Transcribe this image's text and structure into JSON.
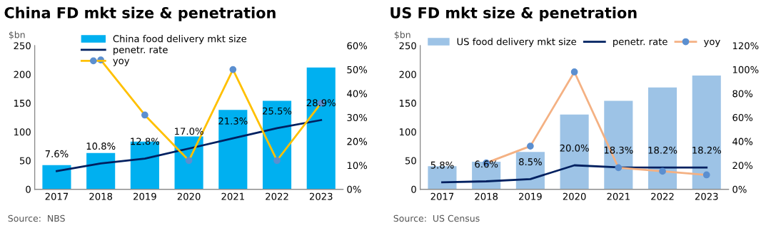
{
  "chart_data": [
    {
      "type": "bar",
      "title": "China FD mkt size & penetration",
      "ylabel": "$bn",
      "annotations": [
        "Source:  NBS"
      ],
      "categories": [
        "2017",
        "2018",
        "2019",
        "2020",
        "2021",
        "2022",
        "2023"
      ],
      "series": [
        {
          "name": "China food delivery mkt size",
          "color": "#00b0f0",
          "values": [
            42,
            63,
            83,
            92,
            138,
            154,
            212
          ]
        },
        {
          "name": "penetr. rate",
          "type": "line",
          "axis": "y2",
          "color": "#002060",
          "values": [
            7.6,
            10.8,
            12.8,
            17.0,
            21.3,
            25.5,
            28.9
          ],
          "value_labels": [
            "7.6%",
            "10.8%",
            "12.8%",
            "17.0%",
            "21.3%",
            "25.5%",
            "28.9%"
          ]
        },
        {
          "name": "yoy",
          "type": "line",
          "axis": "y2",
          "color": "#ffc000",
          "marker": "circle",
          "values": [
            null,
            54,
            31,
            12,
            50,
            12,
            36
          ]
        }
      ],
      "ylim": [
        0,
        250
      ],
      "yticks": [
        0,
        50,
        100,
        150,
        200,
        250
      ],
      "y2lim": [
        0,
        60
      ],
      "y2ticks": [
        {
          "value": 0,
          "label": "0%"
        },
        {
          "value": 10,
          "label": "10%"
        },
        {
          "value": 20,
          "label": "20%"
        },
        {
          "value": 30,
          "label": "30%"
        },
        {
          "value": 40,
          "label": "40%"
        },
        {
          "value": 50,
          "label": "50%"
        },
        {
          "value": 60,
          "label": "60%"
        }
      ],
      "legend": "top",
      "grid": false
    },
    {
      "type": "bar",
      "title": "US FD mkt size & penetration",
      "ylabel": "$bn",
      "annotations": [
        "Source:  US Census"
      ],
      "categories": [
        "2017",
        "2018",
        "2019",
        "2020",
        "2021",
        "2022",
        "2023"
      ],
      "series": [
        {
          "name": "US food delivery mkt size",
          "color": "#9dc3e6",
          "values": [
            40,
            48,
            65,
            130,
            154,
            177,
            198
          ]
        },
        {
          "name": "penetr. rate",
          "type": "line",
          "axis": "y2",
          "color": "#002060",
          "values": [
            5.8,
            6.6,
            8.5,
            20.0,
            18.3,
            18.2,
            18.2
          ],
          "value_labels": [
            "5.8%",
            "6.6%",
            "8.5%",
            "20.0%",
            "18.3%",
            "18.2%",
            "18.2%"
          ]
        },
        {
          "name": "yoy",
          "type": "line",
          "axis": "y2",
          "color": "#f4b183",
          "marker": "circle",
          "values": [
            null,
            22,
            36,
            98,
            18,
            15,
            12
          ]
        }
      ],
      "ylim": [
        0,
        250
      ],
      "yticks": [
        0,
        50,
        100,
        150,
        200,
        250
      ],
      "y2lim": [
        0,
        120
      ],
      "y2ticks": [
        {
          "value": 0,
          "label": "0%"
        },
        {
          "value": 20,
          "label": "20%"
        },
        {
          "value": 40,
          "label": "40%"
        },
        {
          "value": 60,
          "label": "60%"
        },
        {
          "value": 80,
          "label": "80%"
        },
        {
          "value": 100,
          "label": "100%"
        },
        {
          "value": 120,
          "label": "120%"
        }
      ],
      "legend": "top",
      "grid": false
    }
  ]
}
